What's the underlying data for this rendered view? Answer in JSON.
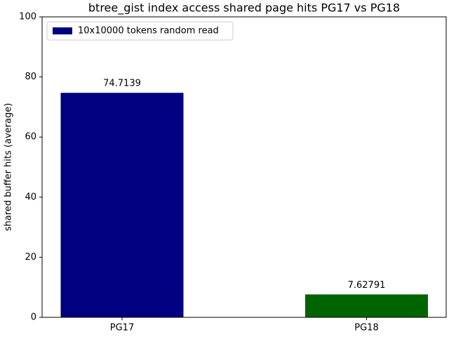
{
  "chart_data": {
    "type": "bar",
    "title": "btree_gist index access shared page hits PG17 vs PG18",
    "ylabel": "shared buffer hits (average)",
    "categories": [
      "PG17",
      "PG18"
    ],
    "series": [
      {
        "name": "10x10000 tokens random read",
        "color": "#000080",
        "colors": [
          "#000080",
          "#006400"
        ],
        "values": [
          74.7139,
          7.62791
        ]
      }
    ],
    "ylim": [
      0,
      100
    ],
    "yticks": [
      0,
      20,
      40,
      60,
      80,
      100
    ],
    "grid": false,
    "legend": "upper left"
  }
}
